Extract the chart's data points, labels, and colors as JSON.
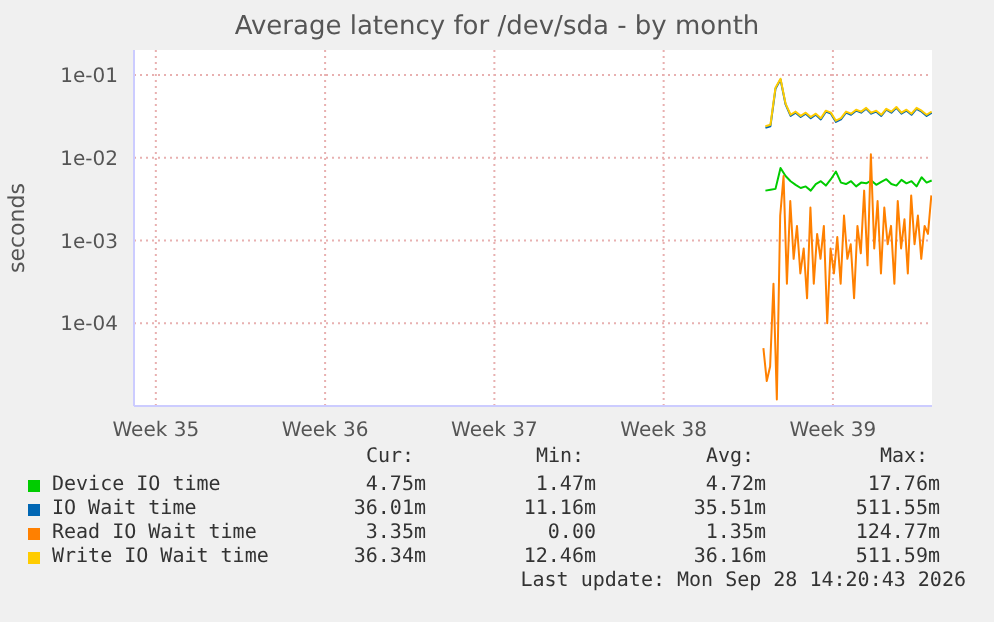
{
  "chart_data": {
    "type": "line",
    "title": "Average latency for /dev/sda - by month",
    "ylabel": "seconds",
    "log": "y",
    "grid": true,
    "legend": "bottom",
    "xlim": [
      "2026-08-26T14:20",
      "2026-09-28T14:20"
    ],
    "xticks": [
      {
        "value": "2026-08-27T12:00",
        "label": "Week 35"
      },
      {
        "value": "2026-09-03T12:00",
        "label": "Week 36"
      },
      {
        "value": "2026-09-10T12:00",
        "label": "Week 37"
      },
      {
        "value": "2026-09-17T12:00",
        "label": "Week 38"
      },
      {
        "value": "2026-09-24T12:00",
        "label": "Week 39"
      }
    ],
    "ylim": [
      1e-05,
      0.2
    ],
    "yticks": [
      {
        "value": 0.1,
        "label": "1e-01"
      },
      {
        "value": 0.01,
        "label": "1e-02"
      },
      {
        "value": 0.001,
        "label": "1e-03"
      },
      {
        "value": 0.0001,
        "label": "1e-04"
      }
    ],
    "series": [
      {
        "name": "Device IO time",
        "color": "#00cc00",
        "x": [
          "2026-09-21T17:00",
          "2026-09-21T22:00",
          "2026-09-22T03:00",
          "2026-09-22T08:00",
          "2026-09-22T13:00",
          "2026-09-22T18:00",
          "2026-09-22T23:00",
          "2026-09-23T04:00",
          "2026-09-23T09:00",
          "2026-09-23T14:00",
          "2026-09-23T19:00",
          "2026-09-24T00:00",
          "2026-09-24T05:00",
          "2026-09-24T10:00",
          "2026-09-24T15:00",
          "2026-09-24T20:00",
          "2026-09-25T01:00",
          "2026-09-25T06:00",
          "2026-09-25T11:00",
          "2026-09-25T16:00",
          "2026-09-25T21:00",
          "2026-09-26T02:00",
          "2026-09-26T07:00",
          "2026-09-26T12:00",
          "2026-09-26T17:00",
          "2026-09-26T22:00",
          "2026-09-27T03:00",
          "2026-09-27T08:00",
          "2026-09-27T13:00",
          "2026-09-27T18:00",
          "2026-09-27T23:00",
          "2026-09-28T04:00",
          "2026-09-28T09:00",
          "2026-09-28T14:00"
        ],
        "values": [
          0.004,
          0.0041,
          0.0042,
          0.0075,
          0.006,
          0.0052,
          0.0047,
          0.0043,
          0.0045,
          0.004,
          0.0048,
          0.0052,
          0.0046,
          0.0055,
          0.0068,
          0.005,
          0.0048,
          0.0052,
          0.0045,
          0.005,
          0.0049,
          0.0053,
          0.0047,
          0.0051,
          0.0055,
          0.0048,
          0.0046,
          0.0054,
          0.0049,
          0.0052,
          0.0045,
          0.0058,
          0.005,
          0.0053
        ]
      },
      {
        "name": "IO Wait time",
        "color": "#0066b3",
        "x": [
          "2026-09-21T17:00",
          "2026-09-21T22:00",
          "2026-09-22T03:00",
          "2026-09-22T08:00",
          "2026-09-22T13:00",
          "2026-09-22T18:00",
          "2026-09-22T23:00",
          "2026-09-23T04:00",
          "2026-09-23T09:00",
          "2026-09-23T14:00",
          "2026-09-23T19:00",
          "2026-09-24T00:00",
          "2026-09-24T05:00",
          "2026-09-24T10:00",
          "2026-09-24T15:00",
          "2026-09-24T20:00",
          "2026-09-25T01:00",
          "2026-09-25T06:00",
          "2026-09-25T11:00",
          "2026-09-25T16:00",
          "2026-09-25T21:00",
          "2026-09-26T02:00",
          "2026-09-26T07:00",
          "2026-09-26T12:00",
          "2026-09-26T17:00",
          "2026-09-26T22:00",
          "2026-09-27T03:00",
          "2026-09-27T08:00",
          "2026-09-27T13:00",
          "2026-09-27T18:00",
          "2026-09-27T23:00",
          "2026-09-28T04:00",
          "2026-09-28T09:00",
          "2026-09-28T14:00"
        ],
        "values": [
          0.023,
          0.024,
          0.068,
          0.088,
          0.044,
          0.032,
          0.035,
          0.031,
          0.034,
          0.03,
          0.033,
          0.029,
          0.036,
          0.034,
          0.027,
          0.029,
          0.035,
          0.033,
          0.037,
          0.035,
          0.039,
          0.034,
          0.036,
          0.032,
          0.038,
          0.035,
          0.04,
          0.034,
          0.037,
          0.033,
          0.039,
          0.036,
          0.032,
          0.035
        ]
      },
      {
        "name": "Read IO Wait time",
        "color": "#ff8000",
        "x": [
          "2026-09-21T15:00",
          "2026-09-21T18:20",
          "2026-09-21T21:40",
          "2026-09-22T01:00",
          "2026-09-22T04:20",
          "2026-09-22T07:40",
          "2026-09-22T11:00",
          "2026-09-22T14:20",
          "2026-09-22T17:40",
          "2026-09-22T21:00",
          "2026-09-23T00:20",
          "2026-09-23T03:40",
          "2026-09-23T07:00",
          "2026-09-23T10:20",
          "2026-09-23T13:40",
          "2026-09-23T17:00",
          "2026-09-23T20:20",
          "2026-09-23T23:40",
          "2026-09-24T03:00",
          "2026-09-24T06:20",
          "2026-09-24T09:40",
          "2026-09-24T13:00",
          "2026-09-24T16:20",
          "2026-09-24T19:40",
          "2026-09-24T23:00",
          "2026-09-25T02:20",
          "2026-09-25T05:40",
          "2026-09-25T09:00",
          "2026-09-25T12:20",
          "2026-09-25T15:40",
          "2026-09-25T19:00",
          "2026-09-25T22:20",
          "2026-09-26T01:40",
          "2026-09-26T05:00",
          "2026-09-26T08:20",
          "2026-09-26T11:40",
          "2026-09-26T15:00",
          "2026-09-26T18:20",
          "2026-09-26T21:40",
          "2026-09-27T01:00",
          "2026-09-27T04:20",
          "2026-09-27T07:40",
          "2026-09-27T11:00",
          "2026-09-27T14:20",
          "2026-09-27T17:40",
          "2026-09-27T21:00",
          "2026-09-28T00:20",
          "2026-09-28T03:40",
          "2026-09-28T07:00",
          "2026-09-28T10:20",
          "2026-09-28T13:40"
        ],
        "values": [
          5e-05,
          2e-05,
          3e-05,
          0.0003,
          1.2e-05,
          0.002,
          0.006,
          0.0003,
          0.003,
          0.0006,
          0.0015,
          0.0004,
          0.0008,
          0.0002,
          0.0025,
          0.0003,
          0.0012,
          0.0006,
          0.0015,
          0.0001,
          0.0008,
          0.0004,
          0.0011,
          0.0003,
          0.002,
          0.0006,
          0.0009,
          0.0002,
          0.0015,
          0.0007,
          0.004,
          0.0005,
          0.011,
          0.0008,
          0.003,
          0.0004,
          0.0025,
          0.0009,
          0.0015,
          0.0003,
          0.003,
          0.0008,
          0.0018,
          0.0004,
          0.0035,
          0.0009,
          0.002,
          0.0006,
          0.0015,
          0.0012,
          0.0035
        ]
      },
      {
        "name": "Write IO Wait time",
        "color": "#ffcc00",
        "x": [
          "2026-09-21T17:00",
          "2026-09-21T22:00",
          "2026-09-22T03:00",
          "2026-09-22T08:00",
          "2026-09-22T13:00",
          "2026-09-22T18:00",
          "2026-09-22T23:00",
          "2026-09-23T04:00",
          "2026-09-23T09:00",
          "2026-09-23T14:00",
          "2026-09-23T19:00",
          "2026-09-24T00:00",
          "2026-09-24T05:00",
          "2026-09-24T10:00",
          "2026-09-24T15:00",
          "2026-09-24T20:00",
          "2026-09-25T01:00",
          "2026-09-25T06:00",
          "2026-09-25T11:00",
          "2026-09-25T16:00",
          "2026-09-25T21:00",
          "2026-09-26T02:00",
          "2026-09-26T07:00",
          "2026-09-26T12:00",
          "2026-09-26T17:00",
          "2026-09-26T22:00",
          "2026-09-27T03:00",
          "2026-09-27T08:00",
          "2026-09-27T13:00",
          "2026-09-27T18:00",
          "2026-09-27T23:00",
          "2026-09-28T04:00",
          "2026-09-28T09:00",
          "2026-09-28T14:00"
        ],
        "values": [
          0.024,
          0.025,
          0.07,
          0.09,
          0.045,
          0.033,
          0.036,
          0.032,
          0.035,
          0.031,
          0.034,
          0.03,
          0.037,
          0.035,
          0.028,
          0.03,
          0.036,
          0.034,
          0.038,
          0.036,
          0.04,
          0.035,
          0.037,
          0.033,
          0.039,
          0.036,
          0.041,
          0.035,
          0.038,
          0.034,
          0.04,
          0.037,
          0.033,
          0.036
        ]
      }
    ],
    "annotations": [
      "Cur:",
      "Min:",
      "Avg:",
      "Max:",
      "4.75m",
      "1.47m",
      "4.72m",
      "17.76m",
      "36.01m",
      "11.16m",
      "35.51m",
      "511.55m",
      "3.35m",
      "0.00",
      "1.35m",
      "124.77m",
      "36.34m",
      "12.46m",
      "36.16m",
      "511.59m",
      "Last update: Mon Sep 28 14:20:43 2026"
    ]
  }
}
